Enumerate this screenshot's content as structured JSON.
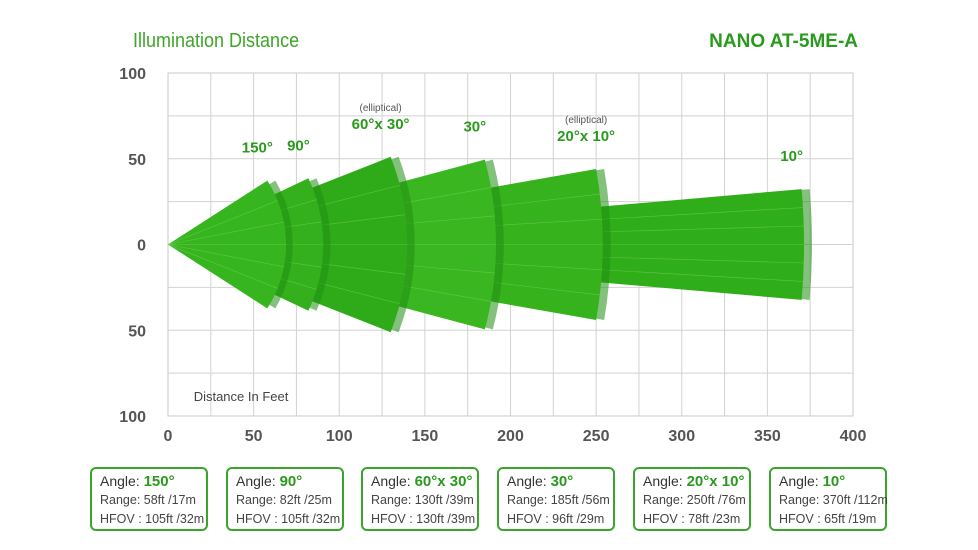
{
  "header": {
    "title": "Illumination Distance",
    "model": "NANO AT-5ME-A"
  },
  "chart_data": {
    "type": "area",
    "xlabel": "Distance In Feet",
    "xlim": [
      0,
      400
    ],
    "ylim": [
      -100,
      100
    ],
    "x_ticks": [
      "0",
      "50",
      "100",
      "150",
      "200",
      "250",
      "300",
      "350",
      "400"
    ],
    "y_ticks": [
      "100",
      "50",
      "0",
      "50",
      "100"
    ],
    "grid": true,
    "beams": [
      {
        "label": "150°",
        "note": "",
        "range_ft": 58,
        "angle_deg": 150
      },
      {
        "label": "90°",
        "note": "",
        "range_ft": 82,
        "angle_deg": 90
      },
      {
        "label": "60°x 30°",
        "note": "(elliptical)",
        "range_ft": 130,
        "angle_deg": 60
      },
      {
        "label": "30°",
        "note": "",
        "range_ft": 185,
        "angle_deg": 30
      },
      {
        "label": "20°x 10°",
        "note": "(elliptical)",
        "range_ft": 250,
        "angle_deg": 20
      },
      {
        "label": "10°",
        "note": "",
        "range_ft": 370,
        "angle_deg": 10
      }
    ]
  },
  "cards": [
    {
      "angle_label": "Angle: ",
      "angle": "150°",
      "range": "Range: 58ft /17m",
      "hfov": "HFOV : 105ft /32m"
    },
    {
      "angle_label": "Angle: ",
      "angle": "90°",
      "range": "Range: 82ft /25m",
      "hfov": "HFOV : 105ft /32m"
    },
    {
      "angle_label": "Angle: ",
      "angle": "60°x 30°",
      "range": "Range: 130ft /39m",
      "hfov": "HFOV : 130ft /39m"
    },
    {
      "angle_label": "Angle: ",
      "angle": "30°",
      "range": "Range: 185ft /56m",
      "hfov": "HFOV : 96ft /29m"
    },
    {
      "angle_label": "Angle: ",
      "angle": "20°x 10°",
      "range": "Range: 250ft /76m",
      "hfov": "HFOV : 78ft /23m"
    },
    {
      "angle_label": "Angle: ",
      "angle": "10°",
      "range": "Range: 370ft /112m",
      "hfov": "HFOV : 65ft /19m"
    }
  ]
}
